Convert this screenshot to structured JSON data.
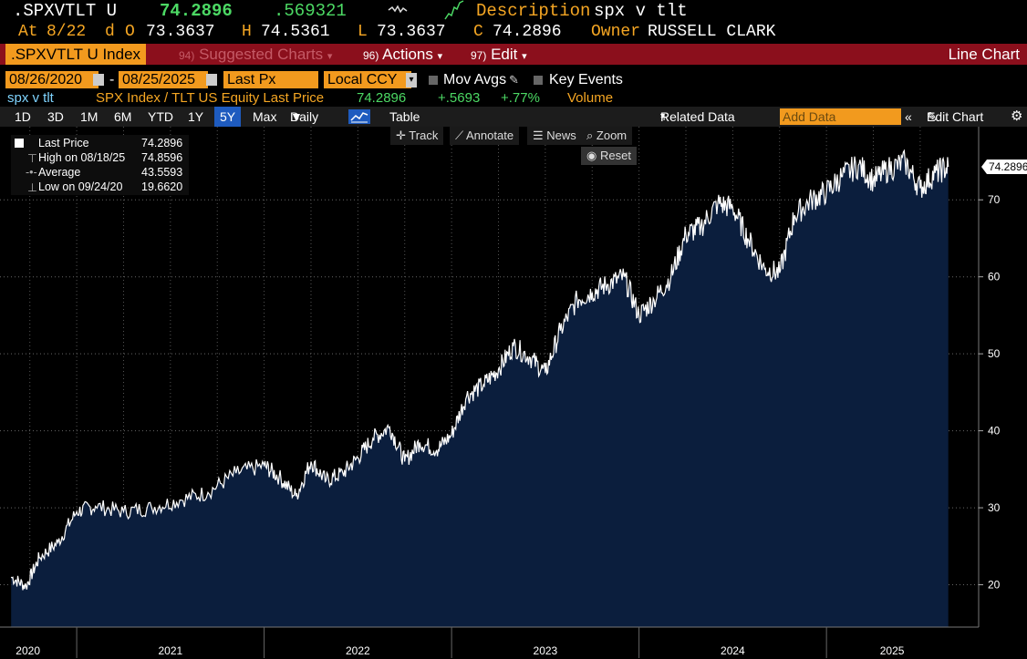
{
  "header": {
    "ticker": ".SPXVTLT U",
    "last": "74.2896",
    "change": ".569321",
    "desc_label": "Description",
    "desc_value": "spx v tlt",
    "at_label": "At",
    "at_date": "8/22",
    "d_label": "d",
    "o_label": "O",
    "open": "73.3637",
    "h_label": "H",
    "high": "74.5361",
    "l_label": "L",
    "low": "73.3637",
    "c_label": "C",
    "close": "74.2896",
    "owner_label": "Owner",
    "owner": "RUSSELL CLARK"
  },
  "function_bar": {
    "security": ".SPXVTLT U Index",
    "suggested_num": "94)",
    "suggested": "Suggested Charts",
    "actions_num": "96)",
    "actions": "Actions",
    "edit_num": "97)",
    "edit": "Edit",
    "chart_type": "Line Chart"
  },
  "controls": {
    "start_date": "08/26/2020",
    "dash": "-",
    "end_date": "08/25/2025",
    "field": "Last Px",
    "currency": "Local CCY",
    "mov_avgs": "Mov Avgs",
    "key_events": "Key Events"
  },
  "legend": {
    "name": "spx v tlt",
    "series": "SPX Index / TLT US Equity Last Price",
    "value": "74.2896",
    "chg": "+.5693",
    "pct": "+.77%",
    "volume": "Volume"
  },
  "toolbar": {
    "ranges": [
      "1D",
      "3D",
      "1M",
      "6M",
      "YTD",
      "1Y",
      "5Y",
      "Max"
    ],
    "selected": "5Y",
    "frequency": "Daily",
    "table": "Table",
    "related": "Related Data",
    "add_data_placeholder": "Add Data",
    "edit_chart": "Edit Chart"
  },
  "chart_tools": {
    "track": "Track",
    "annotate": "Annotate",
    "news": "News",
    "zoom": "Zoom",
    "reset": "Reset"
  },
  "info_box": {
    "last_label": "Last Price",
    "last_value": "74.2896",
    "high_label": "High on 08/18/25",
    "high_value": "74.8596",
    "avg_label": "Average",
    "avg_value": "43.5593",
    "low_label": "Low on 09/24/20",
    "low_value": "19.6620"
  },
  "chart_data": {
    "type": "area",
    "title": "spx v tlt",
    "ylabel": "",
    "ylim": [
      14.5,
      79.5
    ],
    "y_ticks": [
      20,
      30,
      40,
      50,
      60,
      70
    ],
    "x_labels": [
      "2020",
      "2021",
      "2022",
      "2023",
      "2024",
      "2025"
    ],
    "last_label": "74.2896",
    "x": [
      2020.65,
      2020.73,
      2020.8,
      2020.9,
      2021.0,
      2021.1,
      2021.25,
      2021.4,
      2021.55,
      2021.7,
      2021.85,
      2022.0,
      2022.08,
      2022.17,
      2022.25,
      2022.33,
      2022.42,
      2022.5,
      2022.58,
      2022.67,
      2022.75,
      2022.83,
      2022.92,
      2023.0,
      2023.08,
      2023.17,
      2023.25,
      2023.33,
      2023.42,
      2023.5,
      2023.58,
      2023.67,
      2023.75,
      2023.83,
      2023.92,
      2024.0,
      2024.08,
      2024.17,
      2024.25,
      2024.33,
      2024.42,
      2024.5,
      2024.58,
      2024.67,
      2024.75,
      2024.83,
      2024.92,
      2025.0,
      2025.08,
      2025.17,
      2025.25,
      2025.33,
      2025.42,
      2025.5,
      2025.58,
      2025.65
    ],
    "values": [
      21.0,
      19.8,
      23.5,
      25.5,
      29.5,
      30.2,
      29.5,
      30.0,
      31.0,
      32.0,
      34.5,
      35.5,
      34.0,
      31.5,
      36.0,
      33.5,
      34.5,
      36.5,
      39.0,
      40.5,
      36.0,
      38.5,
      37.5,
      39.5,
      44.5,
      46.0,
      48.0,
      51.0,
      49.5,
      47.5,
      53.0,
      57.0,
      58.0,
      59.0,
      60.0,
      55.0,
      57.0,
      60.0,
      65.5,
      66.5,
      69.5,
      69.0,
      65.0,
      61.0,
      60.5,
      68.0,
      70.0,
      71.0,
      73.0,
      74.5,
      72.5,
      74.0,
      74.8596,
      71.5,
      73.5,
      74.2896
    ]
  }
}
